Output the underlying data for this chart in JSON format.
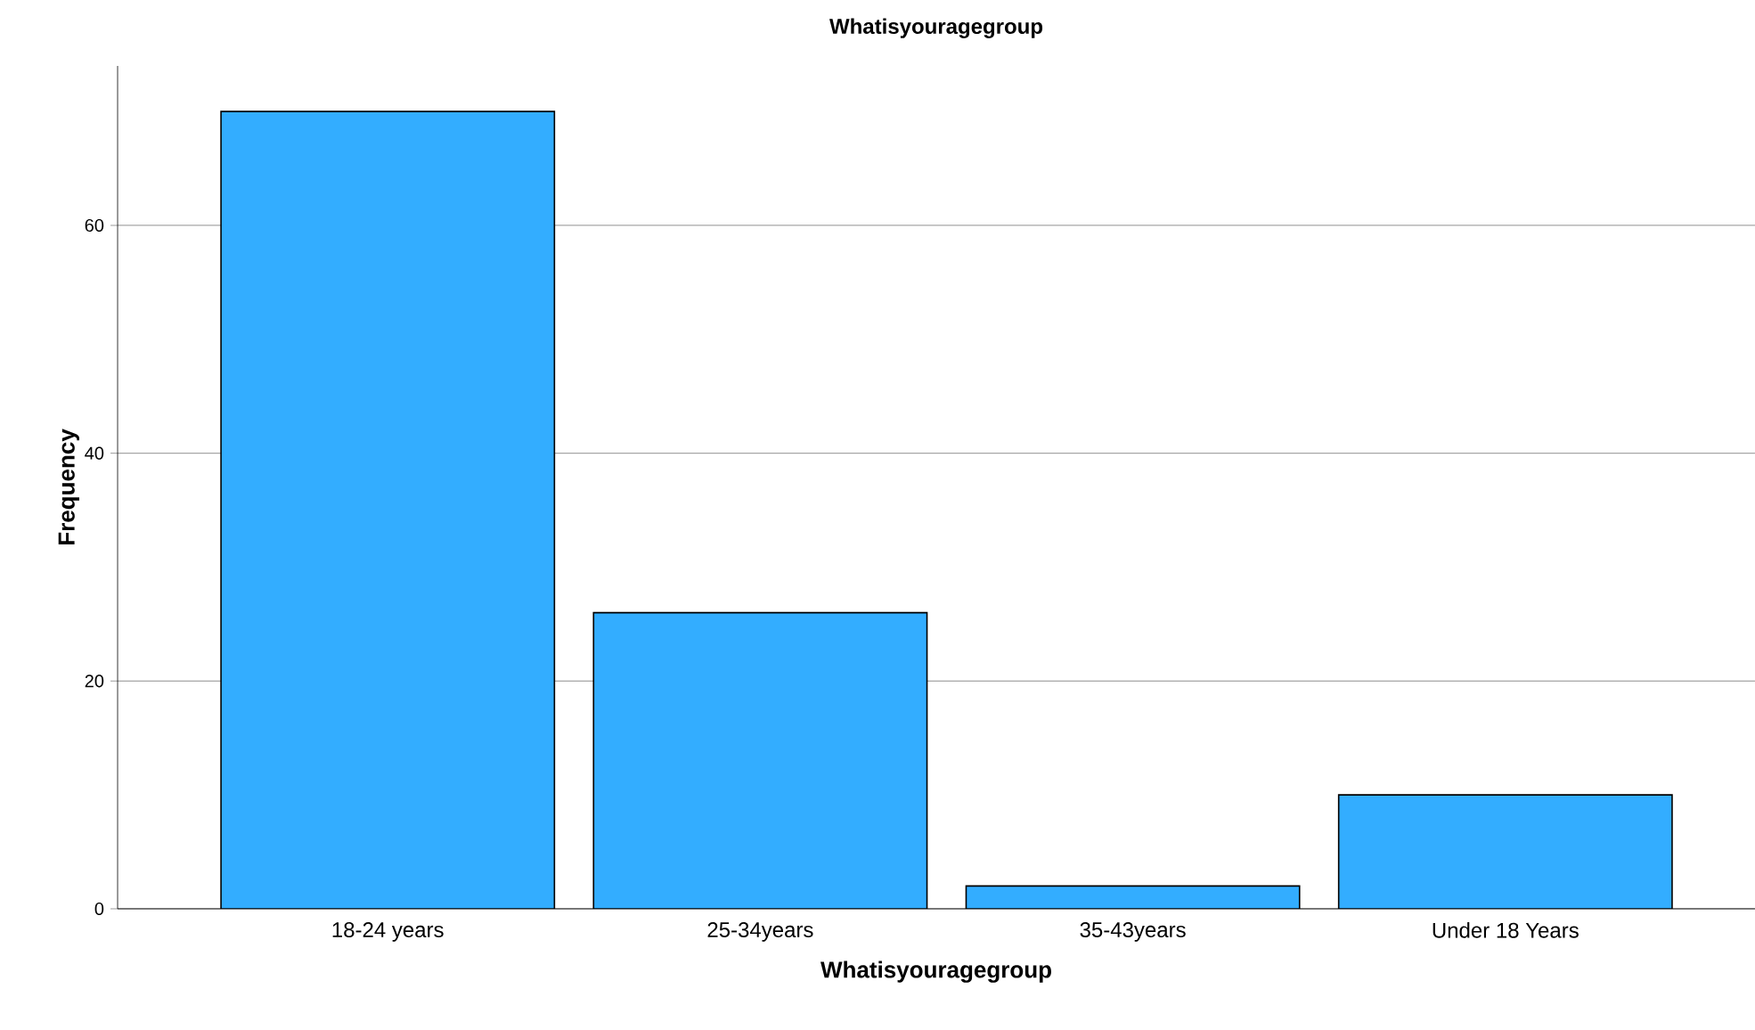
{
  "chart_data": {
    "type": "bar",
    "title": "Whatisyouragegroup",
    "xlabel": "Whatisyouragegroup",
    "ylabel": "Frequency",
    "categories": [
      "18-24 years",
      "25-34years",
      "35-43years",
      "Under 18 Years"
    ],
    "values": [
      70,
      26,
      2,
      10
    ],
    "color": "#33adff",
    "ylim": [
      0,
      74
    ],
    "yticks": [
      0,
      20,
      40,
      60
    ],
    "grid": "y"
  }
}
